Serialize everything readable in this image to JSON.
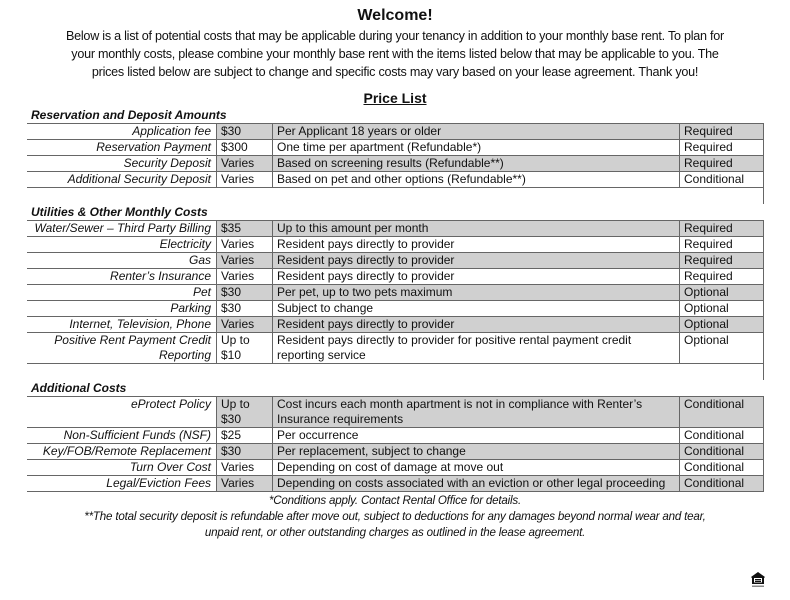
{
  "header": {
    "title": "Welcome!",
    "intro_lines": [
      "Below is a list of potential costs that may be applicable during your tenancy in addition to your monthly base rent. To plan for",
      "your monthly costs, please combine your monthly base rent with the items listed below that may be applicable to you.  The",
      "prices listed below are subject to change and specific costs may vary based on your lease agreement. Thank you!"
    ],
    "price_list_title": "Price List"
  },
  "sections": [
    {
      "title": "Reservation and Deposit Amounts",
      "rows": [
        {
          "item": "Application fee",
          "price": "$30",
          "description": "Per Applicant 18 years or older",
          "status": "Required"
        },
        {
          "item": "Reservation Payment",
          "price": "$300",
          "description": "One time per apartment (Refundable*)",
          "status": "Required"
        },
        {
          "item": "Security Deposit",
          "price": "Varies",
          "description": "Based on screening results (Refundable**)",
          "status": "Required"
        },
        {
          "item": "Additional Security Deposit",
          "price": "Varies",
          "description": "Based on pet and other options (Refundable**)",
          "status": "Conditional"
        }
      ]
    },
    {
      "title": "Utilities & Other Monthly Costs",
      "rows": [
        {
          "item": "Water/Sewer – Third Party Billing",
          "price": "$35",
          "description": "Up to this amount per month",
          "status": "Required"
        },
        {
          "item": "Electricity",
          "price": "Varies",
          "description": "Resident pays directly to provider",
          "status": "Required"
        },
        {
          "item": "Gas",
          "price": "Varies",
          "description": "Resident pays directly to provider",
          "status": "Required"
        },
        {
          "item": "Renter’s Insurance",
          "price": "Varies",
          "description": "Resident pays directly to provider",
          "status": "Required"
        },
        {
          "item": "Pet",
          "price": "$30",
          "description": "Per pet, up to two pets maximum",
          "status": "Optional"
        },
        {
          "item": "Parking",
          "price": "$30",
          "description": "Subject to change",
          "status": "Optional"
        },
        {
          "item": "Internet, Television, Phone",
          "price": "Varies",
          "description": "Resident pays directly to provider",
          "status": "Optional"
        },
        {
          "item": "Positive Rent Payment Credit Reporting",
          "price": "Up to $10",
          "description": "Resident pays directly to provider for positive rental payment credit reporting service",
          "status": "Optional"
        }
      ]
    },
    {
      "title": "Additional Costs",
      "rows": [
        {
          "item": "eProtect Policy",
          "price": "Up to $30",
          "description": "Cost incurs each month apartment is not in compliance with Renter’s Insurance requirements",
          "status": "Conditional"
        },
        {
          "item": "Non-Sufficient Funds (NSF)",
          "price": "$25",
          "description": "Per occurrence",
          "status": "Conditional"
        },
        {
          "item": "Key/FOB/Remote Replacement",
          "price": "$30",
          "description": "Per replacement, subject to change",
          "status": "Conditional"
        },
        {
          "item": "Turn Over Cost",
          "price": "Varies",
          "description": "Depending on cost of damage at move out",
          "status": "Conditional"
        },
        {
          "item": "Legal/Eviction Fees",
          "price": "Varies",
          "description": "Depending on costs associated with an eviction or other legal proceeding",
          "status": "Conditional"
        }
      ]
    }
  ],
  "footnotes": [
    "*Conditions apply. Contact Rental Office for details.",
    "**The total security deposit is refundable after move out, subject to deductions for any damages beyond normal wear and tear,",
    "unpaid rent, or other outstanding charges as outlined in the lease agreement."
  ],
  "logo": {
    "icon": "equal-housing-opportunity-icon"
  },
  "colors": {
    "shaded_row": "#d0d0d0",
    "border": "#666666"
  }
}
